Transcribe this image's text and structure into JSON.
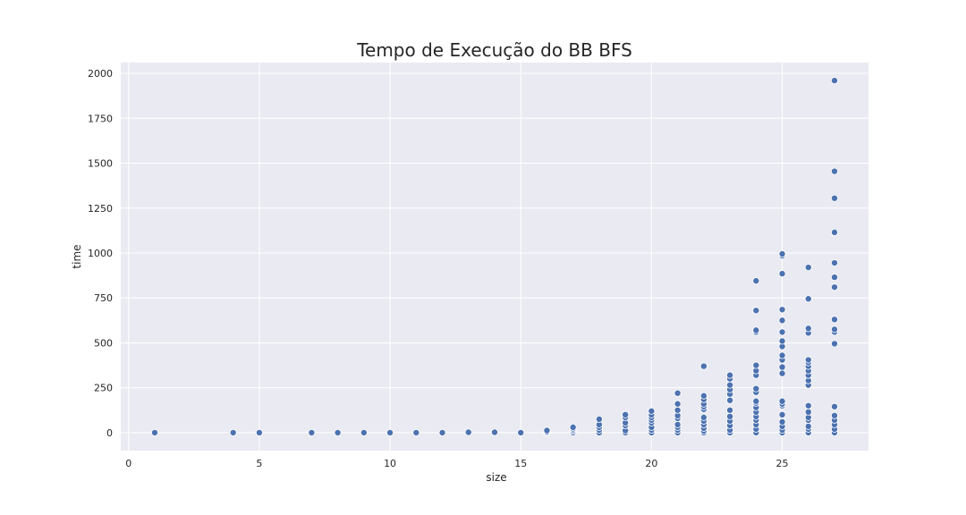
{
  "chart_data": {
    "type": "scatter",
    "title": "Tempo de Execução do BB BFS",
    "xlabel": "size",
    "ylabel": "time",
    "xlim": [
      -0.3,
      28.3
    ],
    "ylim": [
      -100,
      2060
    ],
    "xticks": [
      0,
      5,
      10,
      15,
      20,
      25
    ],
    "yticks": [
      0,
      250,
      500,
      750,
      1000,
      1250,
      1500,
      1750,
      2000
    ],
    "grid": true,
    "colors": {
      "background": "#eaeaf2",
      "grid": "#ffffff",
      "marker": "#4c72b0",
      "marker_edge": "#ffffff"
    },
    "points": [
      [
        1,
        0
      ],
      [
        4,
        0
      ],
      [
        5,
        0
      ],
      [
        7,
        0
      ],
      [
        8,
        0
      ],
      [
        9,
        0
      ],
      [
        10,
        0
      ],
      [
        11,
        0
      ],
      [
        12,
        0
      ],
      [
        13,
        2
      ],
      [
        14,
        2
      ],
      [
        15,
        0
      ],
      [
        16,
        0
      ],
      [
        16,
        5
      ],
      [
        16,
        12
      ],
      [
        17,
        0
      ],
      [
        17,
        8
      ],
      [
        17,
        15
      ],
      [
        17,
        22
      ],
      [
        17,
        30
      ],
      [
        18,
        0
      ],
      [
        18,
        15
      ],
      [
        18,
        30
      ],
      [
        18,
        45
      ],
      [
        18,
        75
      ],
      [
        19,
        0
      ],
      [
        19,
        12
      ],
      [
        19,
        40
      ],
      [
        19,
        55
      ],
      [
        19,
        85
      ],
      [
        19,
        100
      ],
      [
        20,
        0
      ],
      [
        20,
        15
      ],
      [
        20,
        30
      ],
      [
        20,
        55
      ],
      [
        20,
        70
      ],
      [
        20,
        85
      ],
      [
        20,
        100
      ],
      [
        20,
        120
      ],
      [
        21,
        0
      ],
      [
        21,
        15
      ],
      [
        21,
        30
      ],
      [
        21,
        45
      ],
      [
        21,
        80
      ],
      [
        21,
        95
      ],
      [
        21,
        125
      ],
      [
        21,
        160
      ],
      [
        21,
        220
      ],
      [
        22,
        0
      ],
      [
        22,
        10
      ],
      [
        22,
        25
      ],
      [
        22,
        45
      ],
      [
        22,
        65
      ],
      [
        22,
        85
      ],
      [
        22,
        130
      ],
      [
        22,
        145
      ],
      [
        22,
        160
      ],
      [
        22,
        185
      ],
      [
        22,
        205
      ],
      [
        22,
        370
      ],
      [
        23,
        0
      ],
      [
        23,
        15
      ],
      [
        23,
        40
      ],
      [
        23,
        65
      ],
      [
        23,
        90
      ],
      [
        23,
        125
      ],
      [
        23,
        180
      ],
      [
        23,
        215
      ],
      [
        23,
        240
      ],
      [
        23,
        265
      ],
      [
        23,
        300
      ],
      [
        23,
        320
      ],
      [
        24,
        0
      ],
      [
        24,
        20
      ],
      [
        24,
        45
      ],
      [
        24,
        70
      ],
      [
        24,
        90
      ],
      [
        24,
        115
      ],
      [
        24,
        140
      ],
      [
        24,
        165
      ],
      [
        24,
        175
      ],
      [
        24,
        225
      ],
      [
        24,
        245
      ],
      [
        24,
        320
      ],
      [
        24,
        345
      ],
      [
        24,
        375
      ],
      [
        24,
        560
      ],
      [
        24,
        570
      ],
      [
        24,
        680
      ],
      [
        24,
        845
      ],
      [
        25,
        0
      ],
      [
        25,
        15
      ],
      [
        25,
        35
      ],
      [
        25,
        60
      ],
      [
        25,
        100
      ],
      [
        25,
        150
      ],
      [
        25,
        160
      ],
      [
        25,
        175
      ],
      [
        25,
        330
      ],
      [
        25,
        365
      ],
      [
        25,
        405
      ],
      [
        25,
        430
      ],
      [
        25,
        480
      ],
      [
        25,
        510
      ],
      [
        25,
        560
      ],
      [
        25,
        625
      ],
      [
        25,
        685
      ],
      [
        25,
        885
      ],
      [
        25,
        985
      ],
      [
        25,
        995
      ],
      [
        26,
        0
      ],
      [
        26,
        20
      ],
      [
        26,
        35
      ],
      [
        26,
        70
      ],
      [
        26,
        85
      ],
      [
        26,
        115
      ],
      [
        26,
        150
      ],
      [
        26,
        265
      ],
      [
        26,
        290
      ],
      [
        26,
        320
      ],
      [
        26,
        345
      ],
      [
        26,
        370
      ],
      [
        26,
        390
      ],
      [
        26,
        405
      ],
      [
        26,
        555
      ],
      [
        26,
        580
      ],
      [
        26,
        745
      ],
      [
        26,
        920
      ],
      [
        27,
        0
      ],
      [
        27,
        20
      ],
      [
        27,
        45
      ],
      [
        27,
        70
      ],
      [
        27,
        95
      ],
      [
        27,
        145
      ],
      [
        27,
        495
      ],
      [
        27,
        560
      ],
      [
        27,
        575
      ],
      [
        27,
        630
      ],
      [
        27,
        810
      ],
      [
        27,
        865
      ],
      [
        27,
        945
      ],
      [
        27,
        1115
      ],
      [
        27,
        1305
      ],
      [
        27,
        1455
      ],
      [
        27,
        1960
      ]
    ]
  }
}
